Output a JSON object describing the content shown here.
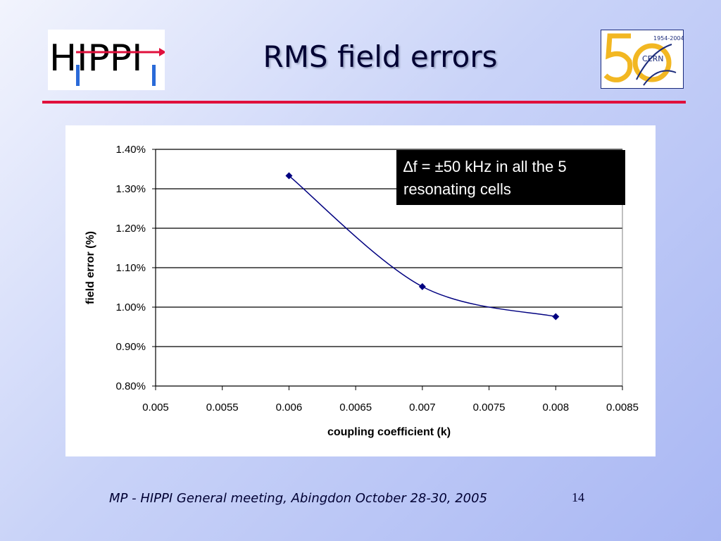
{
  "slide": {
    "title": "RMS field errors",
    "footer": "MP - HIPPI General meeting, Abingdon October 28-30, 2005",
    "page_number": "14"
  },
  "logos": {
    "left": {
      "icon": "hippi-logo",
      "text": "HIPPI"
    },
    "right": {
      "icon": "cern-50-logo",
      "text": "CERN",
      "years": "1954-2004"
    }
  },
  "colors": {
    "accent_rule": "#e0103c",
    "series": "#000080",
    "annotation_bg": "#000000"
  },
  "annotation": {
    "line1": "∆f = ±50 kHz in all the 5",
    "line2": "resonating cells"
  },
  "chart_data": {
    "type": "line",
    "xlabel": "coupling coefficient (k)",
    "ylabel": "field error (%)",
    "xlim": [
      0.005,
      0.0085
    ],
    "ylim": [
      0.008,
      0.014
    ],
    "x_ticks": [
      "0.005",
      "0.0055",
      "0.006",
      "0.0065",
      "0.007",
      "0.0075",
      "0.008",
      "0.0085"
    ],
    "y_ticks": [
      "0.80%",
      "0.90%",
      "1.00%",
      "1.10%",
      "1.20%",
      "1.30%",
      "1.40%"
    ],
    "grid": "horizontal",
    "smoothed": true,
    "series": [
      {
        "x": [
          0.006,
          0.007,
          0.008
        ],
        "y": [
          0.01333,
          0.01052,
          0.00976
        ]
      }
    ]
  }
}
